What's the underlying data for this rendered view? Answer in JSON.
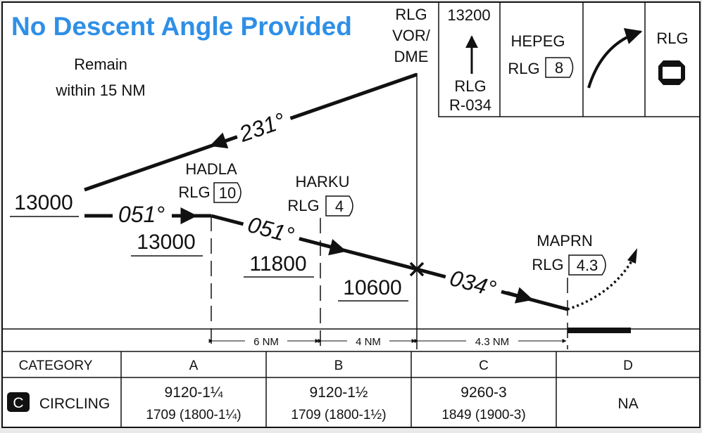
{
  "title": "No Descent Angle Provided",
  "holding": {
    "remain_line1": "Remain",
    "remain_line2": "within 15 NM",
    "course": "231°",
    "altitude": "13000"
  },
  "initial_course": "051°",
  "navaid": {
    "line1": "RLG",
    "line2": "VOR/",
    "line3": "DME"
  },
  "fixes": [
    {
      "name": "HADLA",
      "facility": "RLG",
      "dme": "10"
    },
    {
      "name": "HARKU",
      "facility": "RLG",
      "dme": "4"
    },
    {
      "name": "MAPRN",
      "facility": "RLG",
      "dme": "4.3"
    }
  ],
  "segments": {
    "course_051": "051°",
    "course_034": "034°",
    "alt_hadla": "13000",
    "alt_harku": "11800",
    "alt_vor": "10600"
  },
  "distances": [
    "6 NM",
    "4 NM",
    "4.3 NM"
  ],
  "missed_approach": {
    "altitude": "13200",
    "facility": "RLG",
    "radial": "R-034",
    "hold_fix": "HEPEG",
    "hold_facility": "RLG",
    "hold_dme": "8",
    "navaid": "RLG"
  },
  "minimums": {
    "header": "CATEGORY",
    "categories": [
      "A",
      "B",
      "C",
      "D"
    ],
    "row_badge": "C",
    "row_label": "CIRCLING",
    "values": [
      {
        "main": "9120-1¼",
        "sub": "1709 (1800-1¼)"
      },
      {
        "main": "9120-1½",
        "sub": "1709 (1800-1½)"
      },
      {
        "main": "9260-3",
        "sub": "1849 (1900-3)"
      },
      {
        "main": "NA",
        "sub": ""
      }
    ]
  },
  "colors": {
    "banner": "#2f8fe6",
    "ink": "#111111",
    "paper": "#ffffff"
  }
}
